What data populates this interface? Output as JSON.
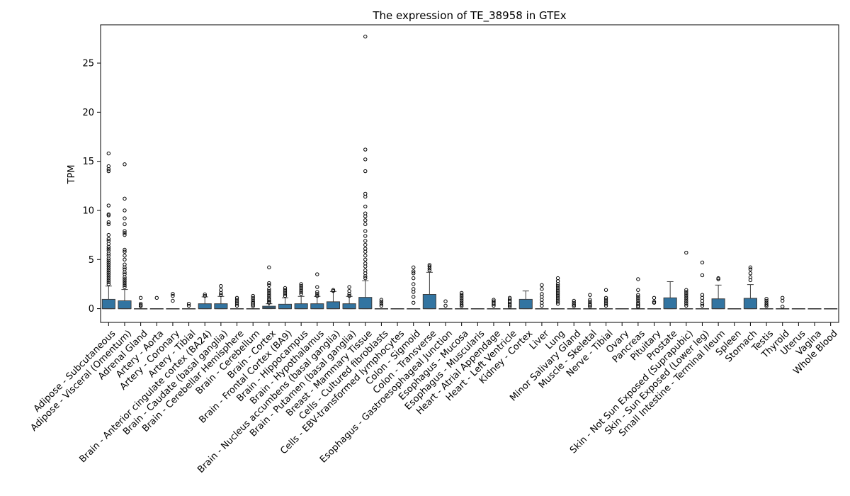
{
  "chart_data": {
    "type": "box",
    "title": "The expression of TE_38958 in GTEx",
    "xlabel": "",
    "ylabel": "TPM",
    "ylim": [
      -1.4,
      28.9
    ],
    "yticks": [
      0,
      5,
      10,
      15,
      20,
      25
    ],
    "grid": false,
    "legend": "none",
    "box_color": "#3274a1",
    "categories": [
      "Adipose - Subcutaneous",
      "Adipose - Visceral (Omentum)",
      "Adrenal Gland",
      "Artery - Aorta",
      "Artery - Coronary",
      "Artery - Tibial",
      "Brain - Anterior cingulate cortex (BA24)",
      "Brain - Caudate (basal ganglia)",
      "Brain - Cerebellar Hemisphere",
      "Brain - Cerebellum",
      "Brain - Cortex",
      "Brain - Frontal Cortex (BA9)",
      "Brain - Hippocampus",
      "Brain - Hypothalamus",
      "Brain - Nucleus accumbens (basal ganglia)",
      "Brain - Putamen (basal ganglia)",
      "Breast - Mammary Tissue",
      "Cells - Cultured fibroblasts",
      "Cells - EBV-transformed lymphocytes",
      "Colon - Sigmoid",
      "Colon - Transverse",
      "Esophagus - Gastroesophageal Junction",
      "Esophagus - Mucosa",
      "Esophagus - Muscularis",
      "Heart - Atrial Appendage",
      "Heart - Left Ventricle",
      "Kidney - Cortex",
      "Liver",
      "Lung",
      "Minor Salivary Gland",
      "Muscle - Skeletal",
      "Nerve - Tibial",
      "Ovary",
      "Pancreas",
      "Pituitary",
      "Prostate",
      "Skin - Not Sun Exposed (Suprapubic)",
      "Skin - Sun Exposed (Lower leg)",
      "Small Intestine - Terminal Ileum",
      "Spleen",
      "Stomach",
      "Testis",
      "Thyroid",
      "Uterus",
      "Vagina",
      "Whole Blood"
    ],
    "boxes": [
      {
        "q1": 0,
        "median": 0,
        "q3": 0.95,
        "whisker_low": 0,
        "whisker_high": 2.3,
        "outliers": [
          15.8,
          14.5,
          14.2,
          14.0,
          10.5,
          9.6,
          9.5,
          8.8,
          8.6,
          7.5,
          7.1,
          6.9,
          6.6,
          6.3,
          6.1,
          5.9,
          5.6,
          5.4,
          5.1,
          4.9,
          4.7,
          4.5,
          4.3,
          4.1,
          3.9,
          3.7,
          3.5,
          3.3,
          3.1,
          2.9,
          2.7,
          2.5
        ]
      },
      {
        "q1": 0,
        "median": 0,
        "q3": 0.8,
        "whisker_low": 0,
        "whisker_high": 1.95,
        "outliers": [
          14.7,
          11.2,
          10.0,
          9.2,
          8.6,
          7.9,
          7.7,
          7.5,
          6.0,
          5.8,
          5.4,
          5.0,
          4.5,
          4.2,
          4.0,
          3.7,
          3.5,
          3.2,
          3.0,
          2.8,
          2.6,
          2.4,
          2.2
        ]
      },
      {
        "q1": 0,
        "median": 0,
        "q3": 0,
        "whisker_low": 0,
        "whisker_high": 0,
        "outliers": [
          1.1,
          0.5,
          0.35,
          0.25
        ]
      },
      {
        "q1": 0,
        "median": 0,
        "q3": 0,
        "whisker_low": 0,
        "whisker_high": 0,
        "outliers": [
          1.1
        ]
      },
      {
        "q1": 0,
        "median": 0,
        "q3": 0,
        "whisker_low": 0,
        "whisker_high": 0,
        "outliers": [
          1.5,
          1.3,
          0.8
        ]
      },
      {
        "q1": 0,
        "median": 0,
        "q3": 0,
        "whisker_low": 0,
        "whisker_high": 0,
        "outliers": [
          0.5,
          0.3
        ]
      },
      {
        "q1": 0,
        "median": 0,
        "q3": 0.5,
        "whisker_low": 0,
        "whisker_high": 1.2,
        "outliers": [
          1.45,
          1.3
        ]
      },
      {
        "q1": 0,
        "median": 0,
        "q3": 0.5,
        "whisker_low": 0,
        "whisker_high": 1.25,
        "outliers": [
          2.3,
          1.9,
          1.6,
          1.4
        ]
      },
      {
        "q1": 0,
        "median": 0,
        "q3": 0,
        "whisker_low": 0,
        "whisker_high": 0,
        "outliers": [
          1.1,
          0.9,
          0.7,
          0.5,
          0.3
        ]
      },
      {
        "q1": 0,
        "median": 0,
        "q3": 0,
        "whisker_low": 0,
        "whisker_high": 0,
        "outliers": [
          1.3,
          1.1,
          0.9,
          0.7,
          0.55,
          0.4,
          0.25
        ]
      },
      {
        "q1": 0,
        "median": 0.08,
        "q3": 0.25,
        "whisker_low": 0,
        "whisker_high": 0.5,
        "outliers": [
          4.2,
          2.6,
          2.4,
          2.0,
          1.8,
          1.6,
          1.4,
          1.2,
          1.0,
          0.9,
          0.75,
          0.6
        ]
      },
      {
        "q1": 0,
        "median": 0,
        "q3": 0.45,
        "whisker_low": 0,
        "whisker_high": 1.1,
        "outliers": [
          2.1,
          1.9,
          1.7,
          1.5,
          1.3
        ]
      },
      {
        "q1": 0,
        "median": 0,
        "q3": 0.5,
        "whisker_low": 0,
        "whisker_high": 1.25,
        "outliers": [
          2.5,
          2.3,
          2.1,
          1.9,
          1.7,
          1.5
        ]
      },
      {
        "q1": 0,
        "median": 0,
        "q3": 0.5,
        "whisker_low": 0,
        "whisker_high": 1.25,
        "outliers": [
          3.5,
          2.2,
          1.7,
          1.5,
          1.3
        ]
      },
      {
        "q1": 0,
        "median": 0,
        "q3": 0.7,
        "whisker_low": 0,
        "whisker_high": 1.75,
        "outliers": [
          1.9,
          1.8
        ]
      },
      {
        "q1": 0,
        "median": 0,
        "q3": 0.5,
        "whisker_low": 0,
        "whisker_high": 1.25,
        "outliers": [
          2.2,
          1.8,
          1.5,
          1.3
        ]
      },
      {
        "q1": 0,
        "median": 0,
        "q3": 1.15,
        "whisker_low": 0,
        "whisker_high": 2.85,
        "outliers": [
          27.7,
          16.2,
          15.2,
          14.0,
          11.7,
          11.4,
          10.4,
          9.7,
          9.4,
          9.0,
          8.6,
          7.9,
          7.4,
          6.9,
          6.5,
          6.1,
          5.8,
          5.4,
          5.0,
          4.6,
          4.3,
          3.9,
          3.6,
          3.3,
          3.1
        ]
      },
      {
        "q1": 0,
        "median": 0,
        "q3": 0,
        "whisker_low": 0,
        "whisker_high": 0,
        "outliers": [
          0.9,
          0.7,
          0.5,
          0.3
        ]
      },
      {
        "q1": 0,
        "median": 0,
        "q3": 0,
        "whisker_low": 0,
        "whisker_high": 0,
        "outliers": []
      },
      {
        "q1": 0,
        "median": 0,
        "q3": 0,
        "whisker_low": 0,
        "whisker_high": 0,
        "outliers": [
          4.2,
          3.8,
          3.6,
          3.1,
          2.5,
          2.0,
          1.7,
          1.2,
          0.6
        ]
      },
      {
        "q1": 0,
        "median": 0,
        "q3": 1.45,
        "whisker_low": 0,
        "whisker_high": 3.7,
        "outliers": [
          4.45,
          4.3,
          4.1,
          3.9
        ]
      },
      {
        "q1": 0,
        "median": 0,
        "q3": 0,
        "whisker_low": 0,
        "whisker_high": 0,
        "outliers": [
          0.75,
          0.3
        ]
      },
      {
        "q1": 0,
        "median": 0,
        "q3": 0,
        "whisker_low": 0,
        "whisker_high": 0,
        "outliers": [
          1.6,
          1.4,
          1.2,
          1.0,
          0.8,
          0.6,
          0.4,
          0.25
        ]
      },
      {
        "q1": 0,
        "median": 0,
        "q3": 0,
        "whisker_low": 0,
        "whisker_high": 0,
        "outliers": []
      },
      {
        "q1": 0,
        "median": 0,
        "q3": 0,
        "whisker_low": 0,
        "whisker_high": 0,
        "outliers": [
          0.9,
          0.75,
          0.6,
          0.45,
          0.3
        ]
      },
      {
        "q1": 0,
        "median": 0,
        "q3": 0,
        "whisker_low": 0,
        "whisker_high": 0,
        "outliers": [
          1.1,
          0.95,
          0.8,
          0.65,
          0.5,
          0.35,
          0.2
        ]
      },
      {
        "q1": 0,
        "median": 0,
        "q3": 0.95,
        "whisker_low": 0,
        "whisker_high": 1.8,
        "outliers": []
      },
      {
        "q1": 0,
        "median": 0,
        "q3": 0,
        "whisker_low": 0,
        "whisker_high": 0,
        "outliers": [
          2.4,
          2.0,
          1.5,
          1.2,
          0.9,
          0.6,
          0.3
        ]
      },
      {
        "q1": 0,
        "median": 0,
        "q3": 0,
        "whisker_low": 0,
        "whisker_high": 0,
        "outliers": [
          3.1,
          2.8,
          2.5,
          2.3,
          2.1,
          1.9,
          1.7,
          1.5,
          1.3,
          1.1,
          0.9,
          0.7,
          0.5
        ]
      },
      {
        "q1": 0,
        "median": 0,
        "q3": 0,
        "whisker_low": 0,
        "whisker_high": 0,
        "outliers": [
          0.8,
          0.6,
          0.4,
          0.25
        ]
      },
      {
        "q1": 0,
        "median": 0,
        "q3": 0,
        "whisker_low": 0,
        "whisker_high": 0,
        "outliers": [
          1.4,
          0.9,
          0.7,
          0.5,
          0.35,
          0.2
        ]
      },
      {
        "q1": 0,
        "median": 0,
        "q3": 0,
        "whisker_low": 0,
        "whisker_high": 0,
        "outliers": [
          1.9,
          1.1,
          0.9,
          0.7,
          0.5,
          0.3
        ]
      },
      {
        "q1": 0,
        "median": 0,
        "q3": 0,
        "whisker_low": 0,
        "whisker_high": 0,
        "outliers": []
      },
      {
        "q1": 0,
        "median": 0,
        "q3": 0,
        "whisker_low": 0,
        "whisker_high": 0,
        "outliers": [
          3.0,
          1.9,
          1.4,
          1.2,
          1.0,
          0.8,
          0.6,
          0.45,
          0.3,
          0.15
        ]
      },
      {
        "q1": 0,
        "median": 0,
        "q3": 0,
        "whisker_low": 0,
        "whisker_high": 0,
        "outliers": [
          1.1,
          0.7,
          0.6
        ]
      },
      {
        "q1": 0,
        "median": 0,
        "q3": 1.1,
        "whisker_low": 0,
        "whisker_high": 2.75,
        "outliers": []
      },
      {
        "q1": 0,
        "median": 0,
        "q3": 0,
        "whisker_low": 0,
        "whisker_high": 0,
        "outliers": [
          5.7,
          1.9,
          1.7,
          1.5,
          1.3,
          1.1,
          0.9,
          0.7,
          0.5,
          0.3
        ]
      },
      {
        "q1": 0,
        "median": 0,
        "q3": 0,
        "whisker_low": 0,
        "whisker_high": 0,
        "outliers": [
          4.7,
          3.4,
          1.4,
          1.1,
          0.8,
          0.5,
          0.3
        ]
      },
      {
        "q1": 0,
        "median": 0,
        "q3": 1.0,
        "whisker_low": 0,
        "whisker_high": 2.4,
        "outliers": [
          3.1,
          3.0
        ]
      },
      {
        "q1": 0,
        "median": 0,
        "q3": 0,
        "whisker_low": 0,
        "whisker_high": 0,
        "outliers": []
      },
      {
        "q1": 0,
        "median": 0,
        "q3": 1.05,
        "whisker_low": 0,
        "whisker_high": 2.45,
        "outliers": [
          4.2,
          4.0,
          3.6,
          3.2,
          2.9
        ]
      },
      {
        "q1": 0,
        "median": 0,
        "q3": 0,
        "whisker_low": 0,
        "whisker_high": 0,
        "outliers": [
          1.0,
          0.8,
          0.6,
          0.4,
          0.25
        ]
      },
      {
        "q1": 0,
        "median": 0,
        "q3": 0,
        "whisker_low": 0,
        "whisker_high": 0,
        "outliers": [
          1.1,
          0.8,
          0.2
        ]
      },
      {
        "q1": 0,
        "median": 0,
        "q3": 0,
        "whisker_low": 0,
        "whisker_high": 0,
        "outliers": []
      },
      {
        "q1": 0,
        "median": 0,
        "q3": 0,
        "whisker_low": 0,
        "whisker_high": 0,
        "outliers": []
      },
      {
        "q1": 0,
        "median": 0,
        "q3": 0,
        "whisker_low": 0,
        "whisker_high": 0,
        "outliers": []
      }
    ]
  }
}
